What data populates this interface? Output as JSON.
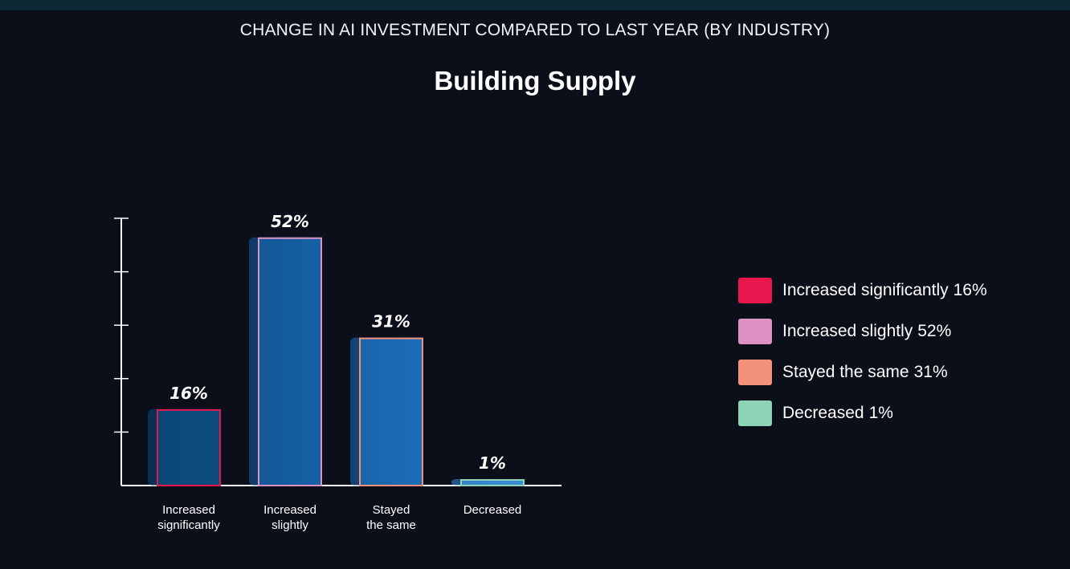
{
  "header": {
    "supertitle": "CHANGE IN AI INVESTMENT COMPARED TO LAST YEAR (BY INDUSTRY)",
    "title": "Building Supply"
  },
  "chart_data": {
    "type": "bar",
    "title": "Building Supply",
    "supertitle": "CHANGE IN AI INVESTMENT COMPARED TO LAST YEAR (BY INDUSTRY)",
    "categories": [
      [
        "Increased",
        "significantly"
      ],
      [
        "Increased",
        "slightly"
      ],
      [
        "Stayed",
        "the same"
      ],
      [
        "Decreased"
      ]
    ],
    "values": [
      16,
      52,
      31,
      1
    ],
    "value_labels": [
      "16%",
      "52%",
      "31%",
      "1%"
    ],
    "ylim": [
      0,
      56
    ],
    "xlabel": "",
    "ylabel": "",
    "grid": false,
    "series_colors": [
      "#e8174e",
      "#de92c4",
      "#f2907a",
      "#8fd3b6"
    ],
    "bar_colors": [
      "#0b4e80",
      "#1461a6",
      "#1b6fbb",
      "#3a8fd8"
    ],
    "legend_position": "right"
  },
  "legend": {
    "items": [
      {
        "label": "Increased significantly",
        "value": "16%",
        "color": "#e8174e"
      },
      {
        "label": "Increased slightly",
        "value": "52%",
        "color": "#de92c4"
      },
      {
        "label": "Stayed the same",
        "value": "31%",
        "color": "#f2907a"
      },
      {
        "label": "Decreased",
        "value": "1%",
        "color": "#8fd3b6"
      }
    ]
  }
}
